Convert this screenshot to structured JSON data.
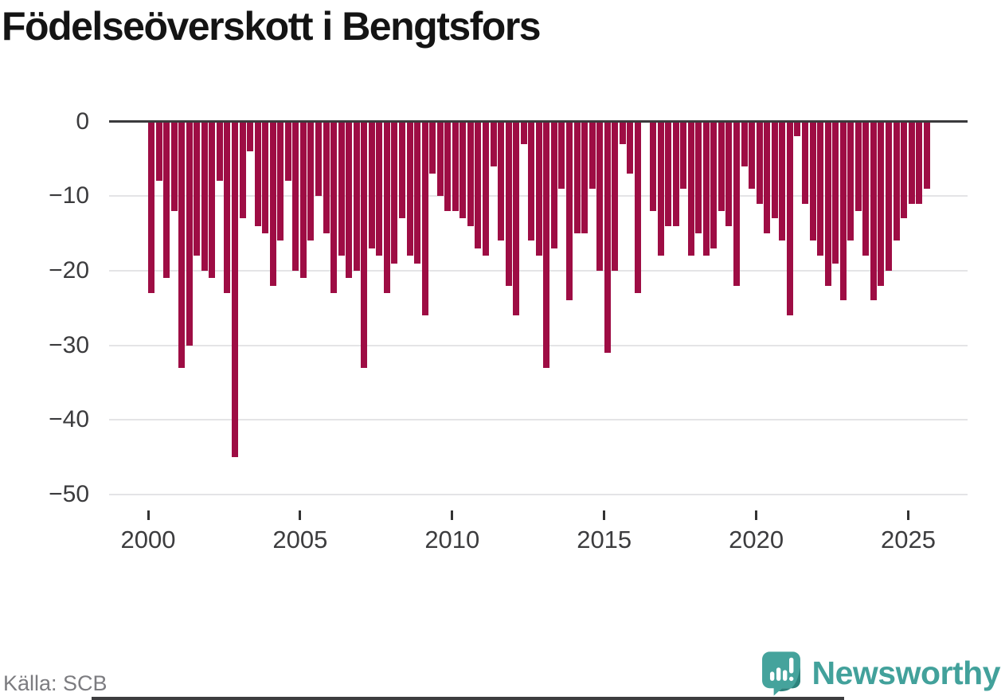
{
  "title": "Födelseöverskott i Bengtsfors",
  "source_label": "Källa: SCB",
  "brand": {
    "name": "Newsworthy",
    "text_color": "#42a19b",
    "icon_color": "#45a39c",
    "icon_shadow_color": "#2e837d",
    "icon": "newsworthy-speech-bubble-chart-icon"
  },
  "chart_data": {
    "type": "bar",
    "title": "Födelseöverskott i Bengtsfors",
    "frequency": "quarterly",
    "start_period": "2000Q1",
    "end_period": "2025Q3",
    "bar_color": "#9e0d44",
    "ylim": [
      -50,
      0
    ],
    "grid": true,
    "y_tick_labels": [
      "0",
      "−10",
      "−20",
      "−30",
      "−40",
      "−50"
    ],
    "y_tick_values": [
      0,
      -10,
      -20,
      -30,
      -40,
      -50
    ],
    "x_tick_labels": [
      "2000",
      "2005",
      "2010",
      "2015",
      "2020",
      "2025"
    ],
    "values": [
      -23,
      -8,
      -21,
      -12,
      -33,
      -30,
      -18,
      -20,
      -21,
      -8,
      -23,
      -45,
      -13,
      -4,
      -14,
      -15,
      -22,
      -16,
      -8,
      -20,
      -21,
      -16,
      -10,
      -15,
      -23,
      -18,
      -21,
      -20,
      -33,
      -17,
      -18,
      -23,
      -19,
      -13,
      -18,
      -19,
      -26,
      -7,
      -10,
      -12,
      -12,
      -13,
      -14,
      -17,
      -18,
      -6,
      -16,
      -22,
      -26,
      -3,
      -16,
      -18,
      -33,
      -17,
      -9,
      -24,
      -15,
      -15,
      -9,
      -20,
      -31,
      -20,
      -3,
      -7,
      -23,
      0,
      -12,
      -18,
      -14,
      -14,
      -9,
      -18,
      -15,
      -18,
      -17,
      -12,
      -14,
      -22,
      -6,
      -9,
      -11,
      -15,
      -13,
      -16,
      -26,
      -2,
      -11,
      -16,
      -18,
      -22,
      -19,
      -24,
      -16,
      -12,
      -18,
      -24,
      -22,
      -20,
      -16,
      -13,
      -11,
      -11,
      -9
    ]
  }
}
